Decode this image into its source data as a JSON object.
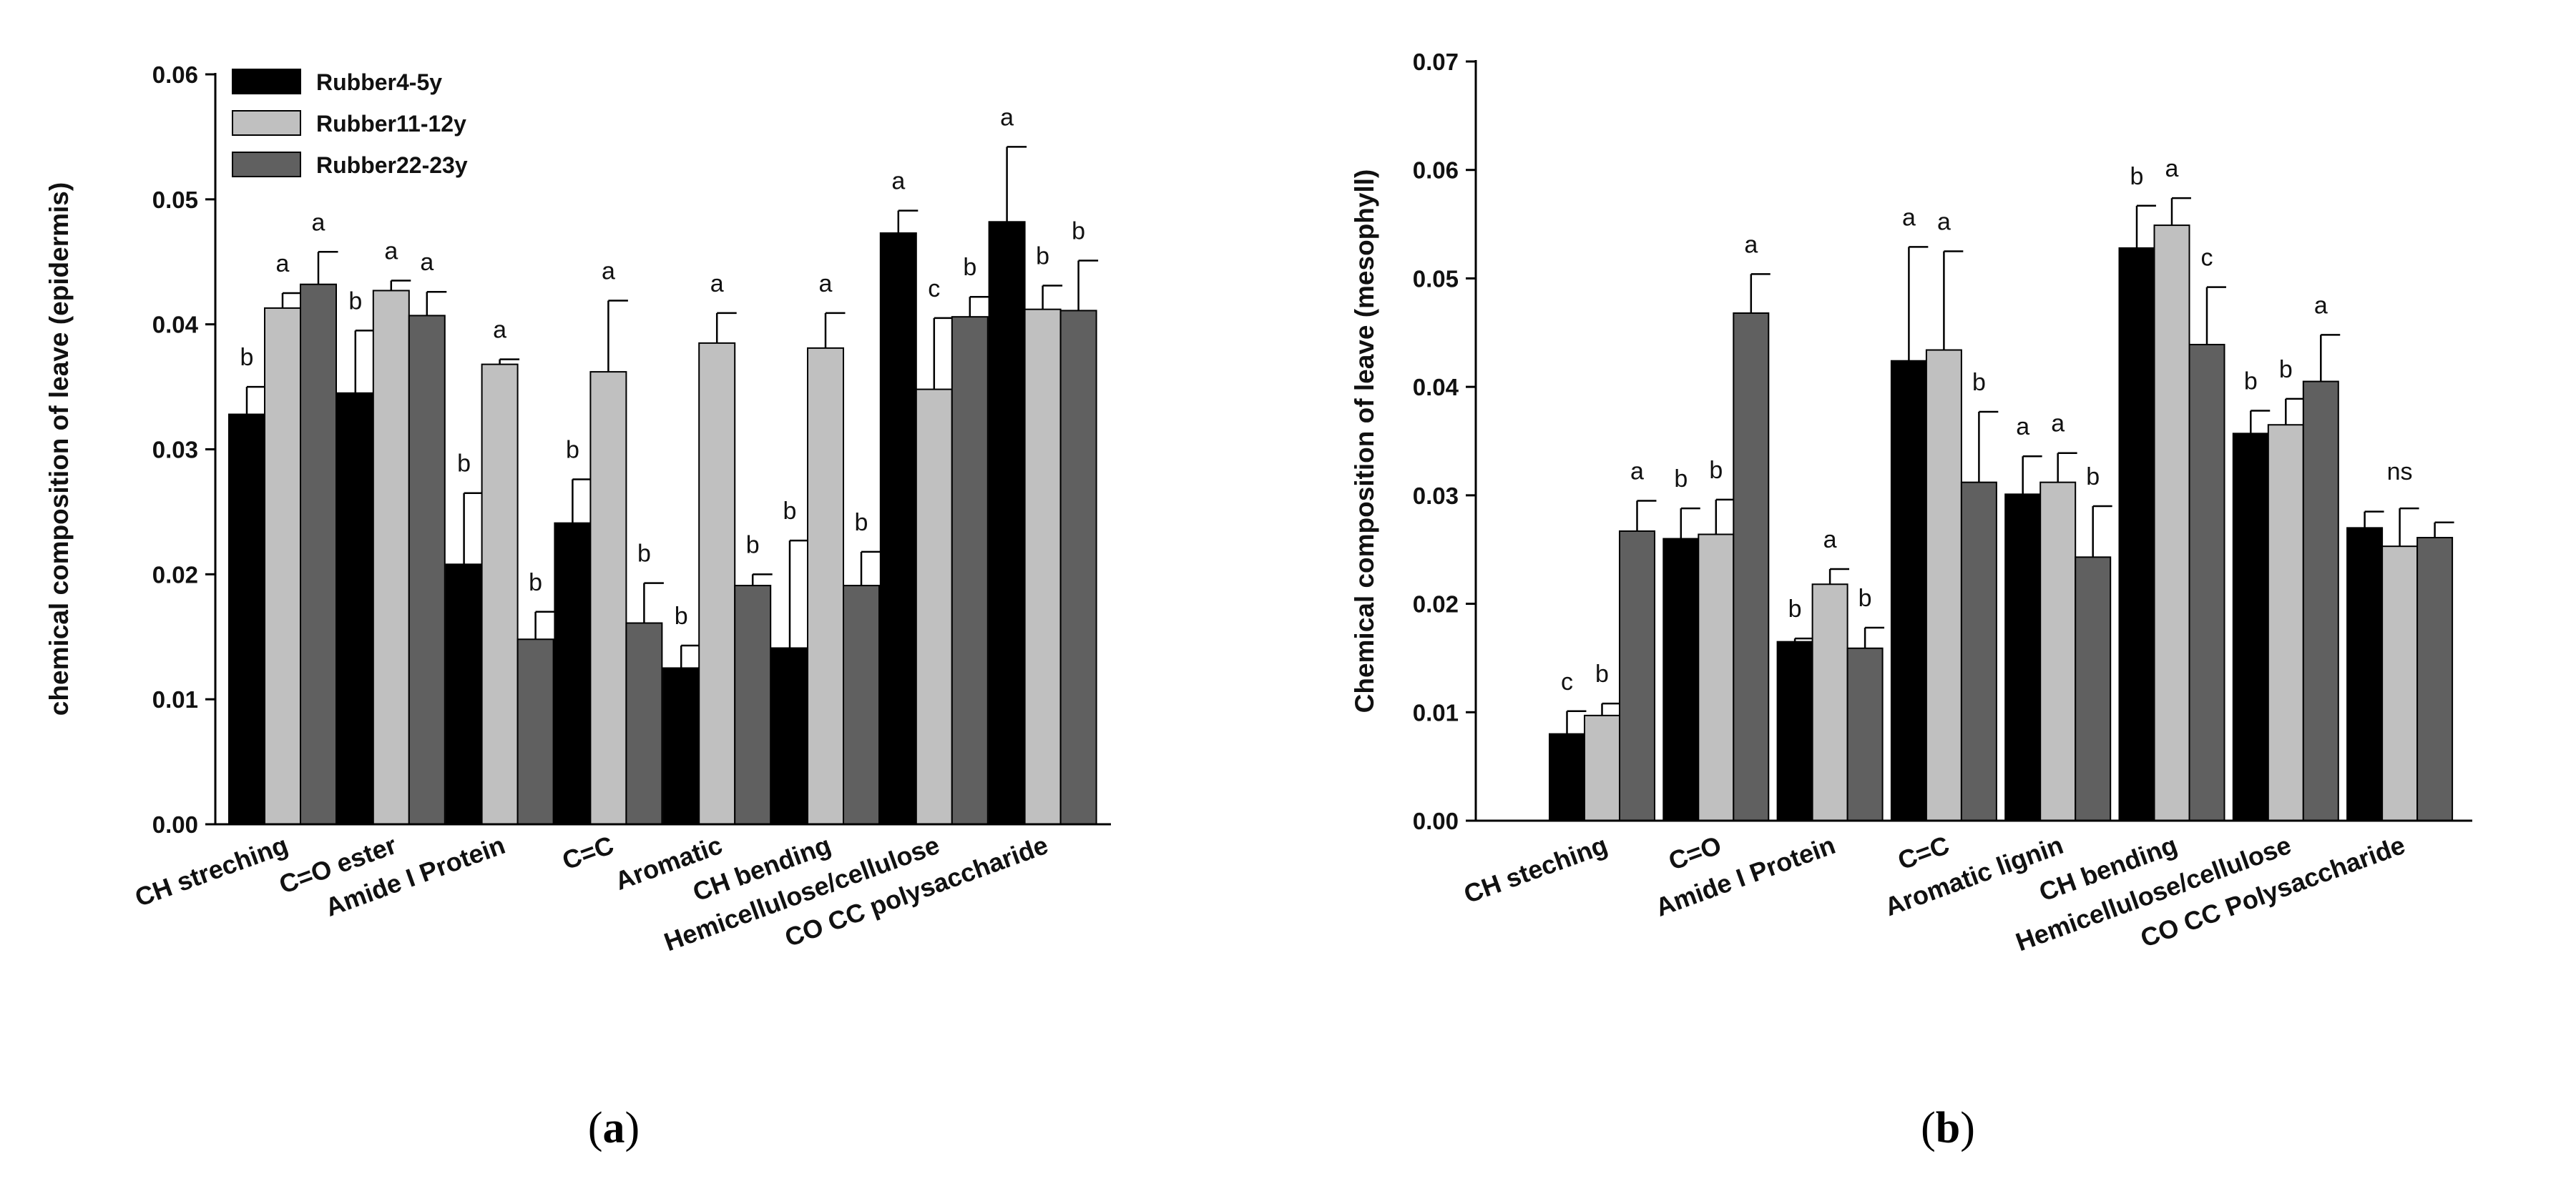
{
  "colors": {
    "Rubber4-5y": "#000000",
    "Rubber11-12y": "#c0c0c0",
    "Rubber22-23y": "#606060"
  },
  "chart_data": [
    {
      "type": "bar",
      "panel": "a",
      "panel_label": {
        "open": "(",
        "letter": "a",
        "close": ")"
      },
      "ylabel": "chemical composition of leave (epidermis)",
      "xlabel": "",
      "ylim": [
        0,
        0.06
      ],
      "yticks": [
        "0.00",
        "0.01",
        "0.02",
        "0.03",
        "0.04",
        "0.05",
        "0.06"
      ],
      "legend": {
        "position": "top-left",
        "entries": [
          "Rubber4-5y",
          "Rubber11-12y",
          "Rubber22-23y"
        ]
      },
      "categories": [
        "CH streching",
        "C=O ester",
        "Amide I Protein",
        "C=C",
        "Aromatic",
        "CH bending",
        "Hemicellulose/cellulose",
        "CO CC polysaccharide"
      ],
      "series": [
        {
          "name": "Rubber4-5y",
          "values": [
            0.0328,
            0.0345,
            0.0208,
            0.0241,
            0.0125,
            0.0141,
            0.0473,
            0.0482
          ],
          "errors": [
            0.0022,
            0.005,
            0.0057,
            0.0035,
            0.0018,
            0.0086,
            0.0018,
            0.006
          ],
          "labels": [
            "b",
            "b",
            "b",
            "b",
            "b",
            "b",
            "a",
            "a"
          ]
        },
        {
          "name": "Rubber11-12y",
          "values": [
            0.0413,
            0.0427,
            0.0368,
            0.0362,
            0.0385,
            0.0381,
            0.0348,
            0.0412
          ],
          "errors": [
            0.0012,
            0.0008,
            0.0004,
            0.0057,
            0.0024,
            0.0028,
            0.0057,
            0.0019
          ],
          "labels": [
            "a",
            "a",
            "a",
            "a",
            "a",
            "a",
            "c",
            "b"
          ]
        },
        {
          "name": "Rubber22-23y",
          "values": [
            0.0432,
            0.0407,
            0.0148,
            0.0161,
            0.0191,
            0.0191,
            0.0406,
            0.0411
          ],
          "errors": [
            0.0026,
            0.0019,
            0.0022,
            0.0032,
            0.0009,
            0.0027,
            0.0016,
            0.004
          ],
          "labels": [
            "a",
            "a",
            "b",
            "b",
            "b",
            "b",
            "b",
            "b"
          ]
        }
      ]
    },
    {
      "type": "bar",
      "panel": "b",
      "panel_label": {
        "open": "(",
        "letter": "b",
        "close": ")"
      },
      "ylabel": "Chemical composition of leave (mesophyll)",
      "xlabel": "",
      "ylim": [
        0,
        0.07
      ],
      "yticks": [
        "0.00",
        "0.01",
        "0.02",
        "0.03",
        "0.04",
        "0.05",
        "0.06",
        "0.07"
      ],
      "categories": [
        "CH steching",
        "C=O",
        "Amide I Protein",
        "C=C",
        "Aromatic lignin",
        "CH bending",
        "Hemicellulose/cellulose",
        "CO CC Polysaccharide"
      ],
      "group_annotations": [
        "",
        "",
        "",
        "",
        "",
        "",
        "",
        "ns"
      ],
      "series": [
        {
          "name": "Rubber4-5y",
          "values": [
            0.008,
            0.026,
            0.0165,
            0.0424,
            0.0301,
            0.0528,
            0.0357,
            0.027
          ],
          "errors": [
            0.0021,
            0.0028,
            0.0003,
            0.0105,
            0.0035,
            0.0039,
            0.0021,
            0.0015
          ],
          "labels": [
            "c",
            "b",
            "b",
            "a",
            "a",
            "b",
            "b",
            ""
          ]
        },
        {
          "name": "Rubber11-12y",
          "values": [
            0.0097,
            0.0264,
            0.0218,
            0.0434,
            0.0312,
            0.0549,
            0.0365,
            0.0253
          ],
          "errors": [
            0.0011,
            0.0032,
            0.0014,
            0.0091,
            0.0027,
            0.0025,
            0.0024,
            0.0035
          ],
          "labels": [
            "b",
            "b",
            "a",
            "a",
            "a",
            "a",
            "b",
            ""
          ]
        },
        {
          "name": "Rubber22-23y",
          "values": [
            0.0267,
            0.0468,
            0.0159,
            0.0312,
            0.0243,
            0.0439,
            0.0405,
            0.0261
          ],
          "errors": [
            0.0028,
            0.0036,
            0.0019,
            0.0065,
            0.0047,
            0.0053,
            0.0043,
            0.0014
          ],
          "labels": [
            "a",
            "a",
            "b",
            "b",
            "b",
            "c",
            "a",
            ""
          ]
        }
      ]
    }
  ]
}
